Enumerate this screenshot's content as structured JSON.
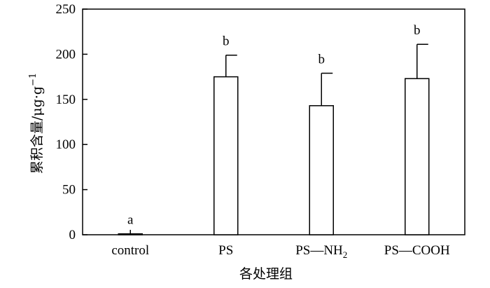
{
  "chart_data": {
    "type": "bar",
    "title": "",
    "xlabel": "各处理组",
    "ylabel": "累积含量/",
    "ylabel_unit": "μg·g",
    "ylabel_unit_exp": "−1",
    "ylim": [
      0,
      250
    ],
    "yticks": [
      0,
      50,
      100,
      150,
      200,
      250
    ],
    "grid": false,
    "categories": [
      {
        "base": "control",
        "sub": "",
        "tail": ""
      },
      {
        "base": "PS",
        "sub": "",
        "tail": ""
      },
      {
        "base": "PS—NH",
        "sub": "2",
        "tail": ""
      },
      {
        "base": "PS—COOH",
        "sub": "",
        "tail": ""
      }
    ],
    "values": [
      1,
      175,
      143,
      173
    ],
    "errors": [
      0,
      24,
      36,
      38
    ],
    "significance": [
      "a",
      "b",
      "b",
      "b"
    ],
    "bar_fill": "#ffffff",
    "bar_stroke": "#000000"
  }
}
